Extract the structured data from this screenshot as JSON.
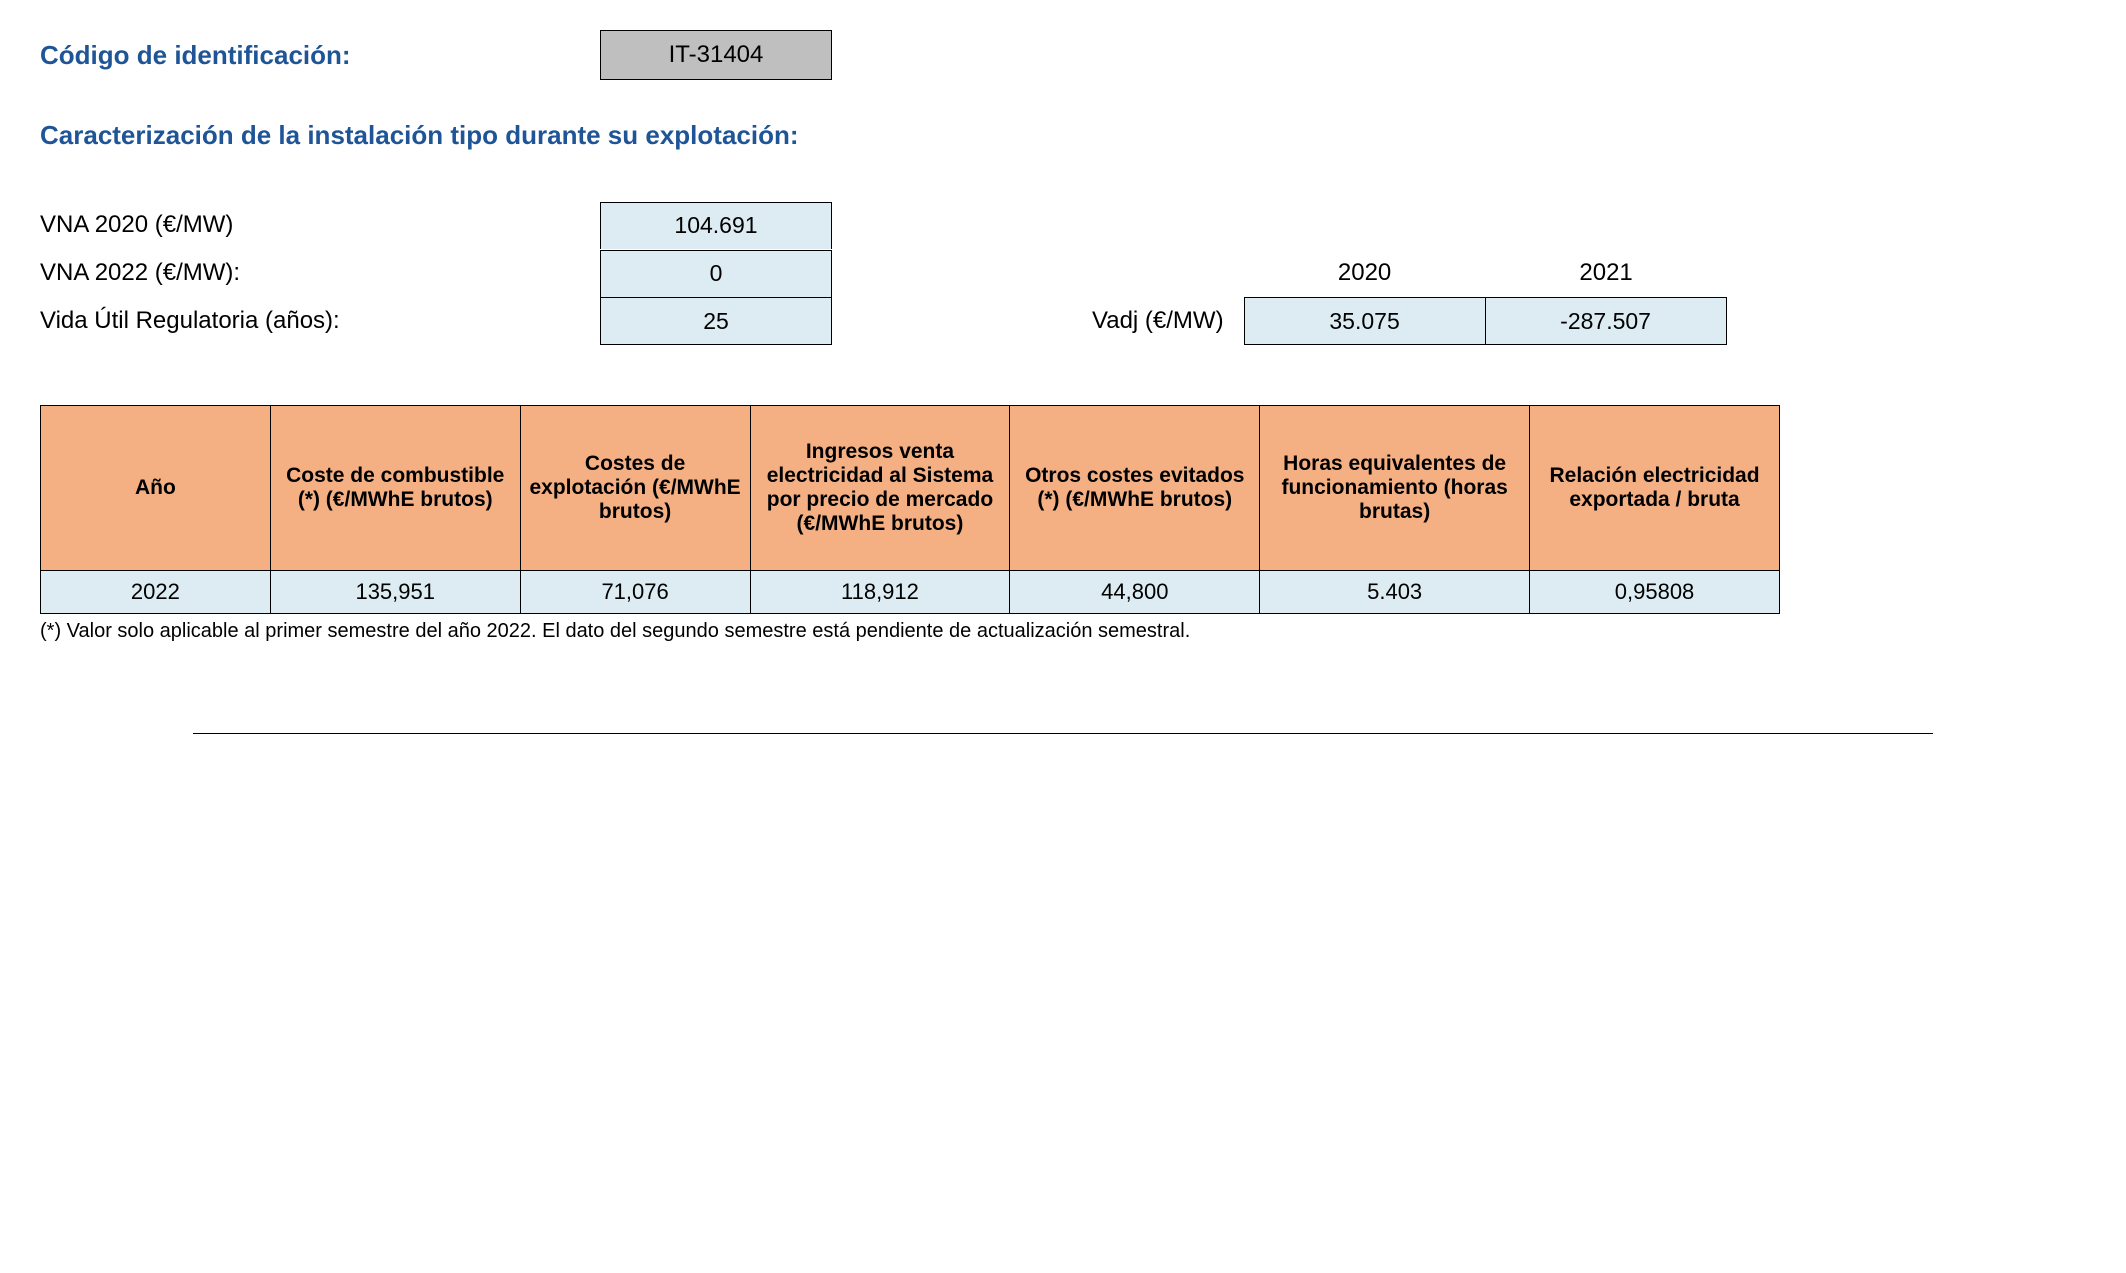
{
  "header": {
    "id_label": "Código de identificación:",
    "id_value": "IT-31404"
  },
  "section": {
    "title": "Caracterización de la instalación tipo durante su explotación:"
  },
  "params": {
    "vna2020_label": "VNA 2020 (€/MW)",
    "vna2020_value": "104.691",
    "vna2022_label": "VNA 2022 (€/MW):",
    "vna2022_value": "0",
    "vida_label": "Vida Útil Regulatoria (años):",
    "vida_value": "25"
  },
  "vadj": {
    "label": "Vadj (€/MW)",
    "years": [
      "2020",
      "2021"
    ],
    "values": [
      "35.075",
      "-287.507"
    ]
  },
  "table": {
    "headers": [
      "Año",
      "Coste de combustible (*) (€/MWhE brutos)",
      "Costes de explotación (€/MWhE brutos)",
      "Ingresos venta electricidad al Sistema por precio de mercado (€/MWhE brutos)",
      "Otros costes evitados (*) (€/MWhE brutos)",
      "Horas equivalentes de funcionamiento (horas brutas)",
      "Relación electricidad exportada / bruta"
    ],
    "rows": [
      [
        "2022",
        "135,951",
        "71,076",
        "118,912",
        "44,800",
        "5.403",
        "0,95808"
      ]
    ],
    "col_widths": [
      "230px",
      "250px",
      "230px",
      "260px",
      "250px",
      "270px",
      "250px"
    ],
    "header_bg": "#f4b083",
    "cell_bg": "#dcecf2",
    "border_color": "#000000"
  },
  "footnote": "(*) Valor solo aplicable al primer semestre del año 2022. El dato del segundo semestre está pendiente de actualización semestral.",
  "colors": {
    "heading": "#1f5597",
    "code_bg": "#bfbfbf",
    "value_bg": "#dcecf2"
  }
}
